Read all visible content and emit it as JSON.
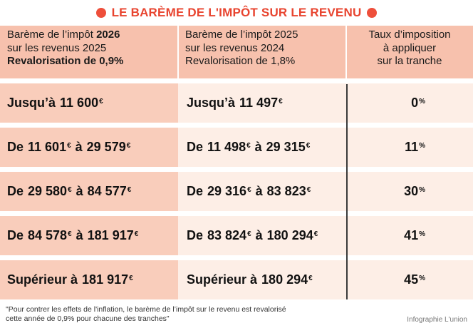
{
  "title": "LE BARÈME DE L'IMPÔT SUR LE REVENU",
  "header": {
    "col1_line1_pre": "Barème de l’impôt ",
    "col1_line1_bold": "2026",
    "col1_line2": "sur les revenus 2025",
    "col1_line3": "Revalorisation de 0,9%",
    "col2_line1": "Barème de l’impôt 2025",
    "col2_line2": "sur les revenus 2024",
    "col2_line3": "Revalorisation de 1,8%",
    "col3_line1": "Taux d’imposition",
    "col3_line2": "à appliquer",
    "col3_line3": "sur la tranche"
  },
  "currency": "€",
  "percent": "%",
  "rows": [
    {
      "c1_prefix": "Jusqu’à",
      "c1_a": "11 600",
      "c1_mid": "",
      "c1_b": "",
      "c2_prefix": "Jusqu’à",
      "c2_a": "11 497",
      "c2_mid": "",
      "c2_b": "",
      "rate": "0"
    },
    {
      "c1_prefix": "De",
      "c1_a": "11 601",
      "c1_mid": "à",
      "c1_b": "29 579",
      "c2_prefix": "De",
      "c2_a": "11 498",
      "c2_mid": "à",
      "c2_b": "29 315",
      "rate": "11"
    },
    {
      "c1_prefix": "De",
      "c1_a": "29 580",
      "c1_mid": "à",
      "c1_b": "84 577",
      "c2_prefix": "De",
      "c2_a": "29 316",
      "c2_mid": "à",
      "c2_b": "83 823",
      "rate": "30"
    },
    {
      "c1_prefix": "De",
      "c1_a": "84 578",
      "c1_mid": "à",
      "c1_b": "181 917",
      "c2_prefix": "De",
      "c2_a": "83 824",
      "c2_mid": "à",
      "c2_b": "180 294",
      "rate": "41"
    },
    {
      "c1_prefix": "Supérieur à",
      "c1_a": "181 917",
      "c1_mid": "",
      "c1_b": "",
      "c2_prefix": "Supérieur à",
      "c2_a": "180 294",
      "c2_mid": "",
      "c2_b": "",
      "rate": "45"
    }
  ],
  "footnote_line1": "\"Pour contrer les effets de l'inflation, le barème de l’impôt sur le revenu est revalorisé",
  "footnote_line2": "cette année de 0,9% pour chacune des tranches\"",
  "credit": "Infographie L'union",
  "colors": {
    "title": "#e8442f",
    "header": "#f7c1ad",
    "col1": "#f9cdbb",
    "col2": "#fdeee6"
  }
}
